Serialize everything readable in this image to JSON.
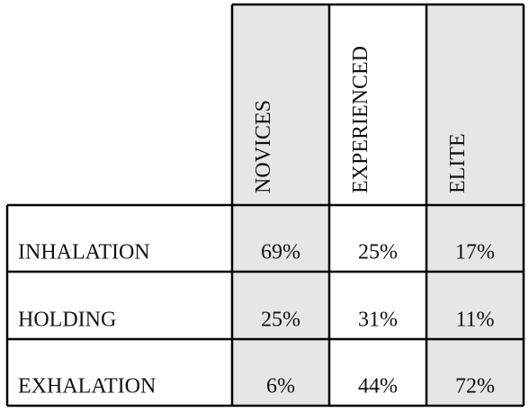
{
  "table": {
    "columns": [
      "NOVICES",
      "EXPERIENCED",
      "ELITE"
    ],
    "rows": [
      [
        "INHALATION",
        "69%",
        "25%",
        "17%"
      ],
      [
        "HOLDING",
        "25%",
        "31%",
        "11%"
      ],
      [
        "EXHALATION",
        "6%",
        "44%",
        "72%"
      ]
    ]
  }
}
